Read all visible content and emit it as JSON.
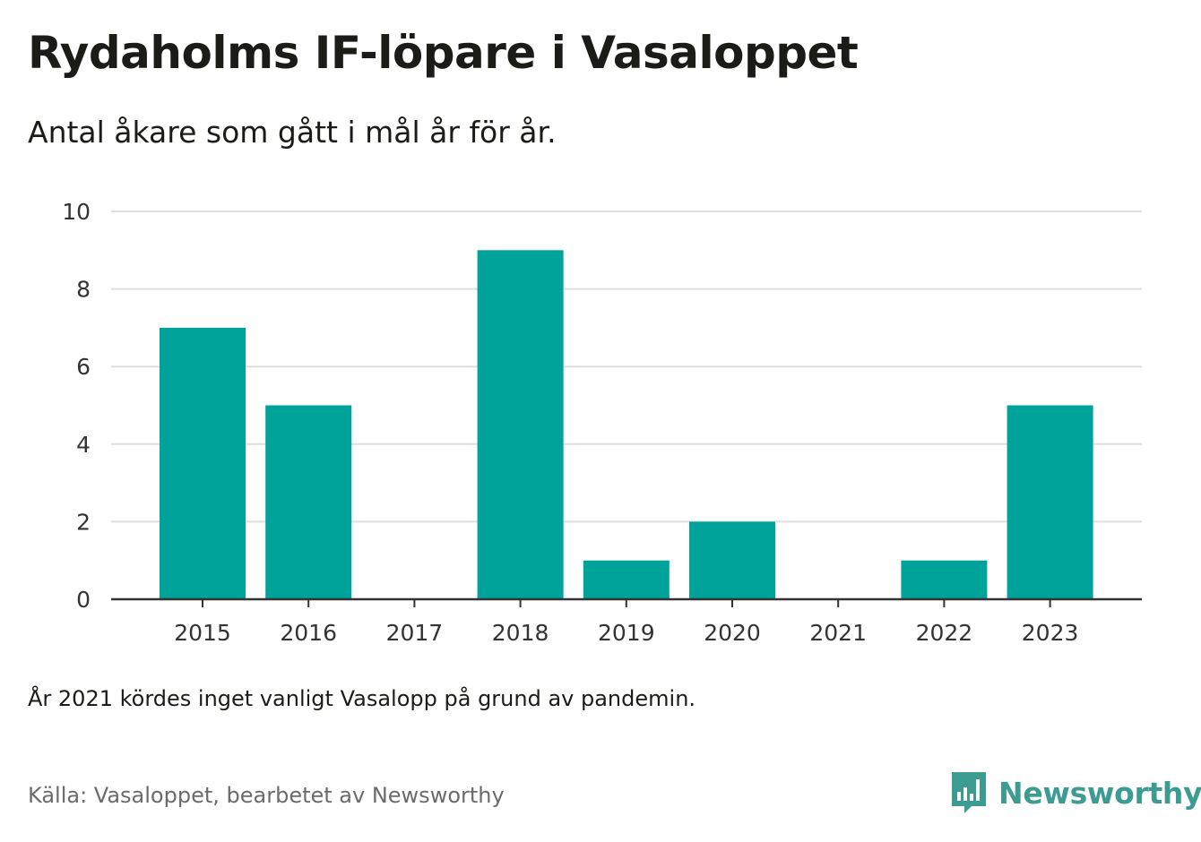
{
  "header": {
    "title": "Rydaholms IF-löpare i Vasaloppet",
    "subtitle": "Antal åkare som gått i mål år för år."
  },
  "chart_data": {
    "type": "bar",
    "categories": [
      "2015",
      "2016",
      "2017",
      "2018",
      "2019",
      "2020",
      "2021",
      "2022",
      "2023"
    ],
    "values": [
      7,
      5,
      0,
      9,
      1,
      2,
      0,
      1,
      5
    ],
    "ylim": [
      0,
      10
    ],
    "yticks": [
      0,
      2,
      4,
      6,
      8,
      10
    ],
    "xlabel": "",
    "ylabel": "",
    "grid": true,
    "bar_color": "#00a39a"
  },
  "footer": {
    "note": "År 2021 kördes inget vanligt Vasalopp på grund av pandemin.",
    "source": "Källa: Vasaloppet, bearbetet av Newsworthy",
    "brand": "Newsworthy",
    "brand_icon": "bar-chart-speech-bubble-icon",
    "brand_color": "#3d9c92"
  }
}
